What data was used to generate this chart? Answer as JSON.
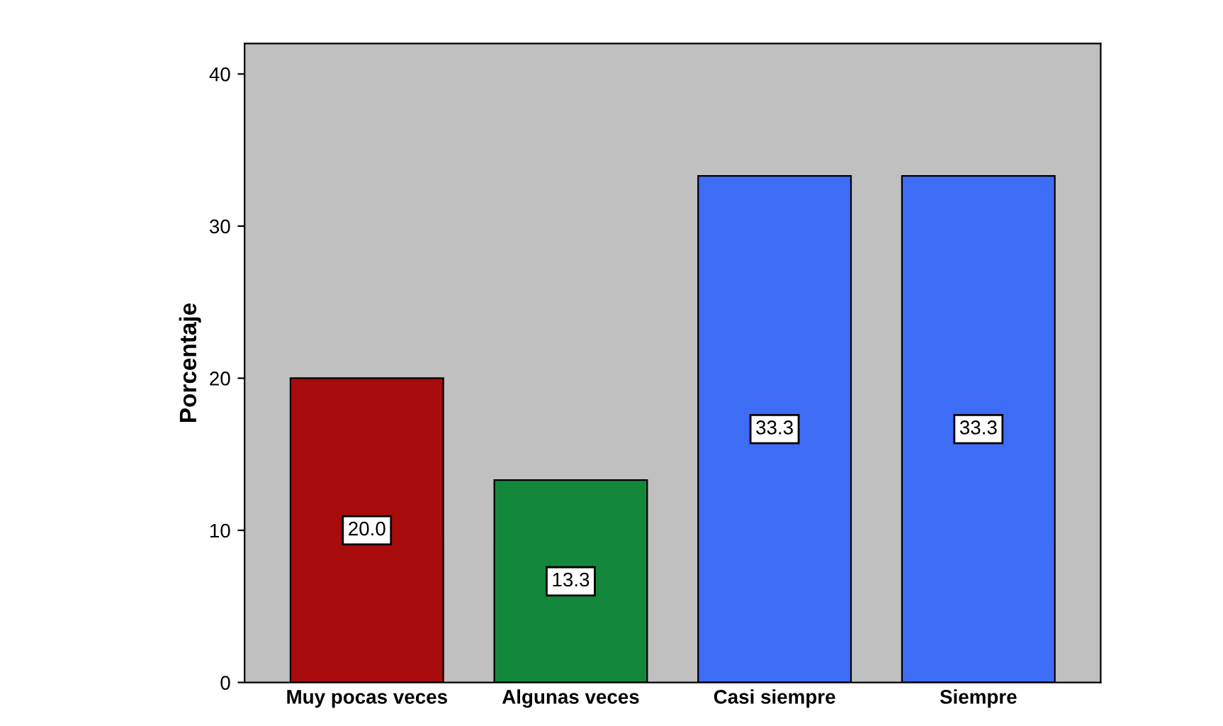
{
  "chart_data": {
    "type": "bar",
    "ylabel": "Porcentaje",
    "categories": [
      "Muy pocas veces",
      "Algunas veces",
      "Casi siempre",
      "Siempre"
    ],
    "values": [
      20.0,
      13.3,
      33.3,
      33.3
    ],
    "value_labels": [
      "20.0",
      "13.3",
      "33.3",
      "33.3"
    ],
    "colors": [
      "#a80c0c",
      "#13883c",
      "#3d6cf5",
      "#3d6cf5"
    ],
    "ylim": [
      0,
      42
    ],
    "yticks": [
      0,
      10,
      20,
      30,
      40
    ],
    "grid": false
  }
}
